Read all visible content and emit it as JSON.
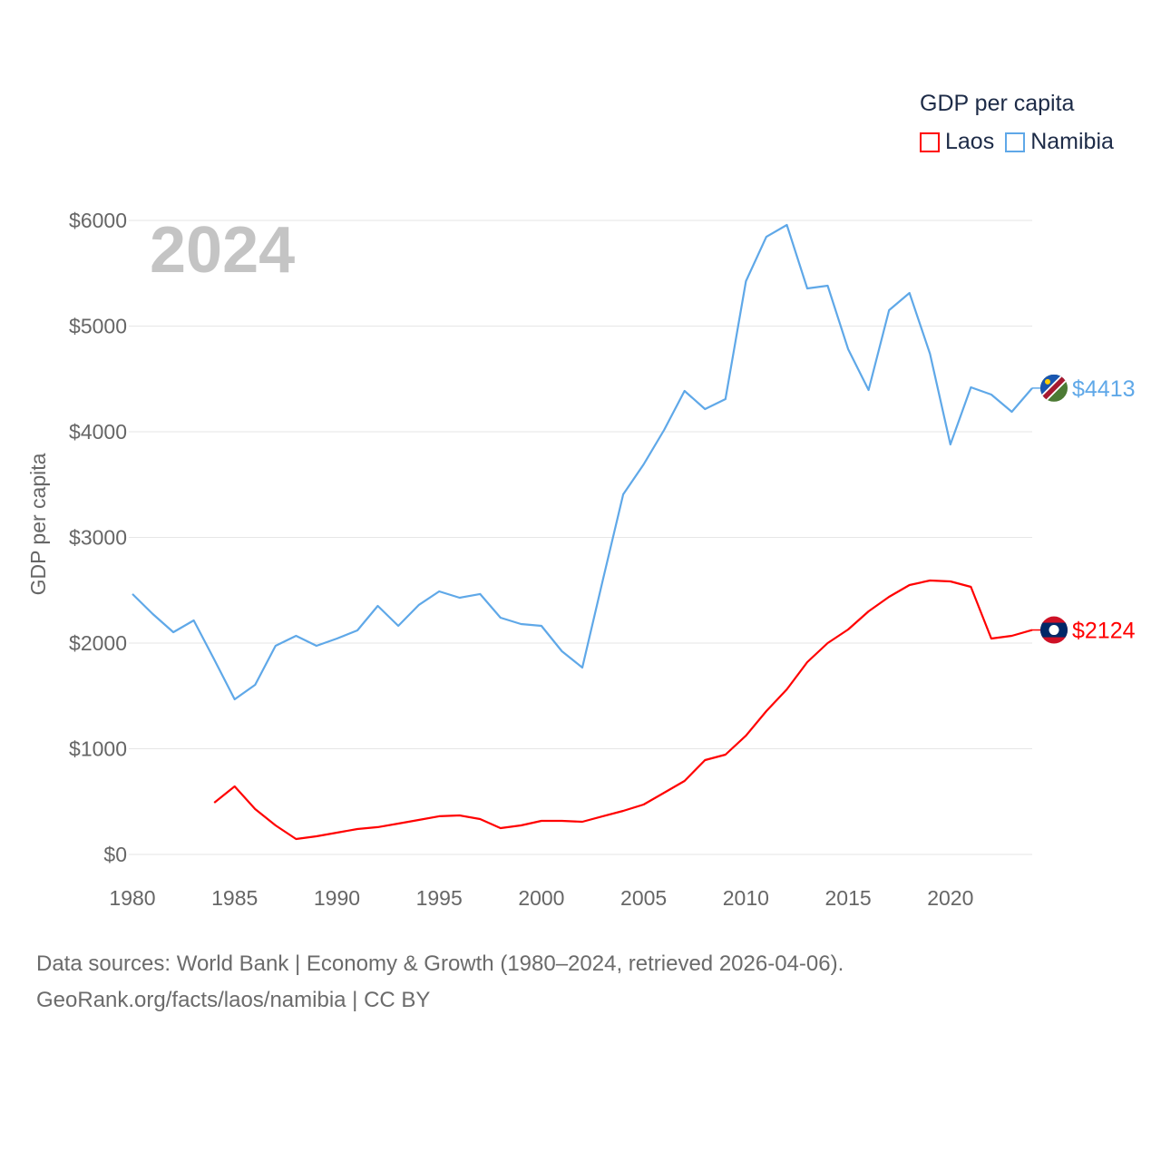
{
  "chart_data": {
    "type": "line",
    "title": "GDP per capita",
    "year_label": "2024",
    "xlabel": "",
    "ylabel": "GDP per capita",
    "xlim": [
      1980,
      2024
    ],
    "ylim": [
      0,
      6000
    ],
    "x_ticks": [
      1980,
      1985,
      1990,
      1995,
      2000,
      2005,
      2010,
      2015,
      2020
    ],
    "y_ticks": [
      0,
      1000,
      2000,
      3000,
      4000,
      5000,
      6000
    ],
    "y_tick_labels": [
      "$0",
      "$1000",
      "$2000",
      "$3000",
      "$4000",
      "$5000",
      "$6000"
    ],
    "grid": true,
    "legend_placement": "top-right",
    "series": [
      {
        "name": "Laos",
        "color": "#ff0000",
        "end_label": "$2124",
        "flag": "laos-flag",
        "x": [
          1984,
          1985,
          1986,
          1987,
          1988,
          1989,
          1990,
          1991,
          1992,
          1993,
          1994,
          1995,
          1996,
          1997,
          1998,
          1999,
          2000,
          2001,
          2002,
          2003,
          2004,
          2005,
          2006,
          2007,
          2008,
          2009,
          2010,
          2011,
          2012,
          2013,
          2014,
          2015,
          2016,
          2017,
          2018,
          2019,
          2020,
          2021,
          2022,
          2023,
          2024
        ],
        "values": [
          489,
          644,
          429,
          275,
          146,
          172,
          206,
          240,
          258,
          292,
          326,
          361,
          369,
          335,
          249,
          275,
          318,
          318,
          309,
          361,
          412,
          472,
          584,
          695,
          893,
          944,
          1124,
          1356,
          1562,
          1820,
          2000,
          2129,
          2300,
          2438,
          2549,
          2592,
          2584,
          2532,
          2043,
          2069,
          2124
        ]
      },
      {
        "name": "Namibia",
        "color": "#5fa8e8",
        "end_label": "$4413",
        "flag": "namibia-flag",
        "x": [
          1980,
          1981,
          1982,
          1983,
          1984,
          1985,
          1986,
          1987,
          1988,
          1989,
          1990,
          1991,
          1992,
          1993,
          1994,
          1995,
          1996,
          1997,
          1998,
          1999,
          2000,
          2001,
          2002,
          2003,
          2004,
          2005,
          2006,
          2007,
          2008,
          2009,
          2010,
          2011,
          2012,
          2013,
          2014,
          2015,
          2016,
          2017,
          2018,
          2019,
          2020,
          2021,
          2022,
          2023,
          2024
        ],
        "values": [
          2464,
          2275,
          2103,
          2215,
          1845,
          1468,
          1605,
          1974,
          2069,
          1974,
          2043,
          2120,
          2352,
          2163,
          2360,
          2489,
          2429,
          2464,
          2240,
          2180,
          2163,
          1923,
          1768,
          2592,
          3408,
          3691,
          4017,
          4386,
          4215,
          4309,
          5425,
          5845,
          5957,
          5356,
          5382,
          4781,
          4395,
          5150,
          5313,
          4738,
          3880,
          4421,
          4352,
          4189,
          4413
        ]
      }
    ]
  },
  "footer": {
    "line1": "Data sources: World Bank | Economy & Growth (1980–2024, retrieved 2026-04-06).",
    "line2": "GeoRank.org/facts/laos/namibia | CC BY"
  }
}
